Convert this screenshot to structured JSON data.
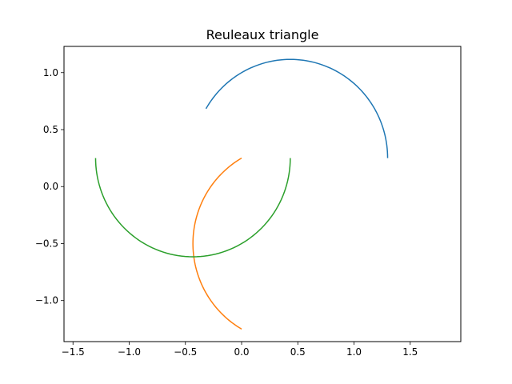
{
  "chart_data": {
    "type": "line",
    "title": "Reuleaux triangle",
    "xlabel": "",
    "ylabel": "",
    "xlim": [
      -1.58,
      1.95
    ],
    "ylim": [
      -1.36,
      1.23
    ],
    "xticks": [
      -1.5,
      -1.0,
      -0.5,
      0.0,
      0.5,
      1.0,
      1.5
    ],
    "xtick_labels": [
      "−1.5",
      "−1.0",
      "−0.5",
      "0.0",
      "0.5",
      "1.0",
      "1.5"
    ],
    "yticks": [
      -1.0,
      -0.5,
      0.0,
      0.5,
      1.0
    ],
    "ytick_labels": [
      "−1.0",
      "−0.5",
      "0.0",
      "0.5",
      "1.0"
    ],
    "grid": false,
    "legend": "none",
    "series": [
      {
        "color": "#1f77b4",
        "center": [
          0.433,
          0.25
        ],
        "radius": 0.866,
        "theta_start_deg": 150,
        "theta_end_deg": 0
      },
      {
        "color": "#ff7f0e",
        "center": [
          0.433,
          -0.5
        ],
        "radius": 0.866,
        "theta_start_deg": 120,
        "theta_end_deg": 240
      },
      {
        "color": "#2ca02c",
        "center": [
          -0.433,
          0.25
        ],
        "radius": 0.866,
        "theta_start_deg": 180,
        "theta_end_deg": 360
      }
    ]
  }
}
